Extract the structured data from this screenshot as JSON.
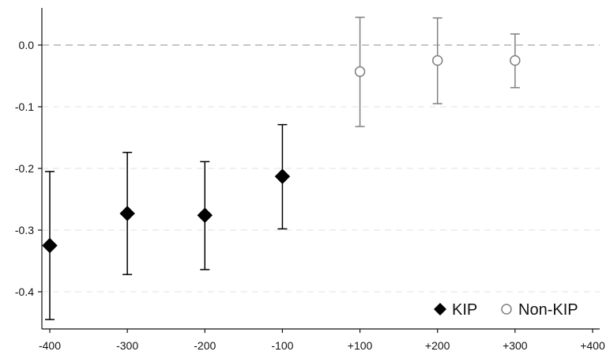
{
  "chart_data": {
    "type": "scatter",
    "title": "",
    "xlabel": "",
    "ylabel": "",
    "x_categories": [
      "-400",
      "-300",
      "-200",
      "-100",
      "+100",
      "+200",
      "+300",
      "+400"
    ],
    "xlim": [
      -400,
      400
    ],
    "ylim": [
      -0.46,
      0.05
    ],
    "yticks": [
      0.0,
      -0.1,
      -0.2,
      -0.3,
      -0.4
    ],
    "ytick_labels": [
      "0.0",
      "-0.1",
      "-0.2",
      "-0.3",
      "-0.4"
    ],
    "reference_line": 0.0,
    "grid": "horizontal dashed",
    "legend_position": "bottom-right",
    "series": [
      {
        "name": "KIP",
        "marker": "filled-diamond",
        "color": "#000000",
        "points": [
          {
            "x": "-400",
            "y": -0.325,
            "ci_low": -0.445,
            "ci_high": -0.205
          },
          {
            "x": "-300",
            "y": -0.273,
            "ci_low": -0.372,
            "ci_high": -0.174
          },
          {
            "x": "-200",
            "y": -0.276,
            "ci_low": -0.364,
            "ci_high": -0.189
          },
          {
            "x": "-100",
            "y": -0.213,
            "ci_low": -0.298,
            "ci_high": -0.129
          }
        ]
      },
      {
        "name": "Non-KIP",
        "marker": "hollow-circle",
        "color": "#808080",
        "points": [
          {
            "x": "+100",
            "y": -0.043,
            "ci_low": -0.132,
            "ci_high": 0.045
          },
          {
            "x": "+200",
            "y": -0.025,
            "ci_low": -0.095,
            "ci_high": 0.044
          },
          {
            "x": "+300",
            "y": -0.025,
            "ci_low": -0.069,
            "ci_high": 0.018
          }
        ]
      }
    ]
  }
}
